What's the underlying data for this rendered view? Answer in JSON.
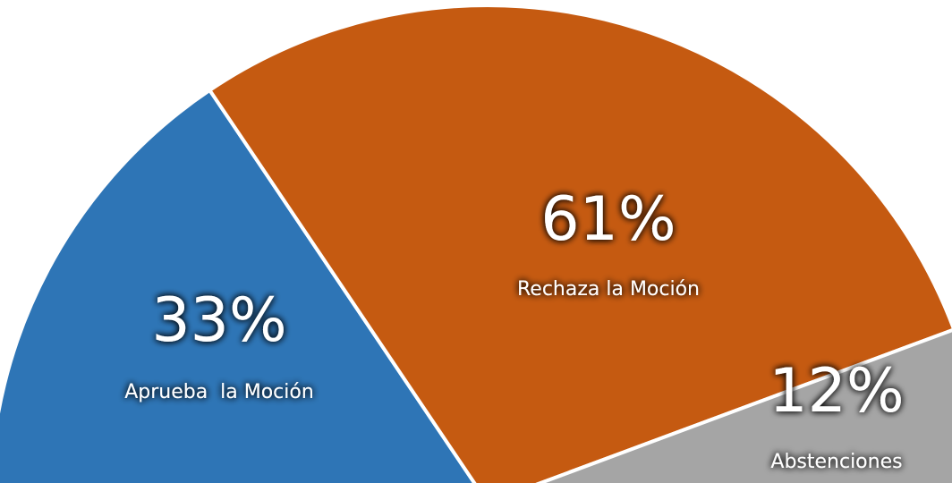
{
  "chart_data": {
    "type": "pie",
    "categories": [
      "Aprueba  la Moción",
      "Rechaza la Moción",
      "Abstenciones"
    ],
    "values": [
      33,
      61,
      12
    ],
    "value_labels": [
      "33%",
      "61%",
      "12%"
    ],
    "colors": [
      "#2e75b6",
      "#c55a11",
      "#a5a5a5"
    ]
  }
}
